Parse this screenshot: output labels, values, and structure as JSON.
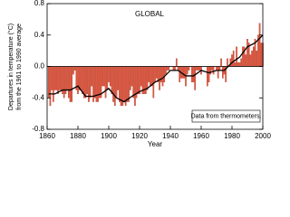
{
  "chart_data": {
    "type": "bar",
    "title": "GLOBAL",
    "ylabel": [
      "Departures in temperature (°C)",
      "from the 1961 to 1990 average"
    ],
    "xlabel": "Year",
    "annotation": "Data from thermometers.",
    "xlim": [
      1860,
      2000
    ],
    "xticks": [
      1860,
      1880,
      1900,
      1920,
      1940,
      1960,
      1980,
      2000
    ],
    "ylim": [
      -0.8,
      0.8
    ],
    "yticks": [
      -0.8,
      -0.4,
      {
        "value": 0,
        "label": "0.0"
      },
      0.4,
      0.8
    ],
    "series": [
      {
        "type": "bar",
        "color": "#e8553c",
        "x": [
          1861,
          1862,
          1863,
          1864,
          1865,
          1866,
          1867,
          1868,
          1869,
          1870,
          1871,
          1872,
          1873,
          1874,
          1875,
          1876,
          1877,
          1878,
          1879,
          1880,
          1881,
          1882,
          1883,
          1884,
          1885,
          1886,
          1887,
          1888,
          1889,
          1890,
          1891,
          1892,
          1893,
          1894,
          1895,
          1896,
          1897,
          1898,
          1899,
          1900,
          1901,
          1902,
          1903,
          1904,
          1905,
          1906,
          1907,
          1908,
          1909,
          1910,
          1911,
          1912,
          1913,
          1914,
          1915,
          1916,
          1917,
          1918,
          1919,
          1920,
          1921,
          1922,
          1923,
          1924,
          1925,
          1926,
          1927,
          1928,
          1929,
          1930,
          1931,
          1932,
          1933,
          1934,
          1935,
          1936,
          1937,
          1938,
          1939,
          1940,
          1941,
          1942,
          1943,
          1944,
          1945,
          1946,
          1947,
          1948,
          1949,
          1950,
          1951,
          1952,
          1953,
          1954,
          1955,
          1956,
          1957,
          1958,
          1959,
          1960,
          1961,
          1962,
          1963,
          1964,
          1965,
          1966,
          1967,
          1968,
          1969,
          1970,
          1971,
          1972,
          1973,
          1974,
          1975,
          1976,
          1977,
          1978,
          1979,
          1980,
          1981,
          1982,
          1983,
          1984,
          1985,
          1986,
          1987,
          1988,
          1989,
          1990,
          1991,
          1992,
          1993,
          1994,
          1995,
          1996,
          1997,
          1998,
          1999,
          2000
        ],
        "values": [
          -0.4,
          -0.5,
          -0.3,
          -0.45,
          -0.3,
          -0.3,
          -0.35,
          -0.3,
          -0.3,
          -0.35,
          -0.4,
          -0.35,
          -0.3,
          -0.4,
          -0.45,
          -0.45,
          -0.1,
          -0.05,
          -0.3,
          -0.35,
          -0.3,
          -0.3,
          -0.35,
          -0.4,
          -0.4,
          -0.35,
          -0.45,
          -0.4,
          -0.25,
          -0.45,
          -0.4,
          -0.45,
          -0.45,
          -0.4,
          -0.4,
          -0.25,
          -0.25,
          -0.4,
          -0.3,
          -0.2,
          -0.25,
          -0.35,
          -0.45,
          -0.5,
          -0.4,
          -0.3,
          -0.45,
          -0.5,
          -0.5,
          -0.45,
          -0.5,
          -0.45,
          -0.45,
          -0.3,
          -0.25,
          -0.4,
          -0.5,
          -0.4,
          -0.35,
          -0.35,
          -0.25,
          -0.35,
          -0.35,
          -0.35,
          -0.3,
          -0.2,
          -0.25,
          -0.25,
          -0.4,
          -0.2,
          -0.15,
          -0.2,
          -0.3,
          -0.2,
          -0.25,
          -0.2,
          -0.1,
          -0.05,
          -0.05,
          0.0,
          0.0,
          -0.05,
          -0.05,
          0.1,
          -0.05,
          -0.2,
          -0.15,
          -0.15,
          -0.15,
          -0.25,
          -0.1,
          -0.05,
          0.0,
          -0.2,
          -0.2,
          -0.3,
          -0.05,
          -0.05,
          -0.05,
          -0.1,
          0.0,
          0.0,
          0.0,
          -0.25,
          -0.2,
          -0.1,
          -0.05,
          -0.1,
          0.0,
          -0.05,
          -0.15,
          -0.05,
          0.1,
          -0.15,
          -0.1,
          -0.2,
          0.1,
          0.0,
          0.1,
          0.15,
          0.2,
          0.05,
          0.25,
          0.05,
          0.05,
          0.1,
          0.25,
          0.25,
          0.15,
          0.35,
          0.3,
          0.15,
          0.2,
          0.25,
          0.35,
          0.2,
          0.4,
          0.55,
          0.3,
          0.3
        ]
      },
      {
        "type": "line",
        "color": "#000000",
        "x": [
          1861,
          1865,
          1870,
          1875,
          1880,
          1885,
          1890,
          1895,
          1900,
          1905,
          1910,
          1915,
          1920,
          1925,
          1930,
          1935,
          1940,
          1945,
          1950,
          1955,
          1960,
          1965,
          1970,
          1975,
          1980,
          1985,
          1990,
          1995,
          2000
        ],
        "values": [
          -0.35,
          -0.35,
          -0.3,
          -0.3,
          -0.25,
          -0.38,
          -0.38,
          -0.35,
          -0.28,
          -0.4,
          -0.45,
          -0.38,
          -0.32,
          -0.28,
          -0.2,
          -0.15,
          -0.05,
          -0.05,
          -0.12,
          -0.12,
          -0.05,
          -0.08,
          -0.05,
          -0.05,
          0.05,
          0.12,
          0.25,
          0.3,
          0.4
        ]
      }
    ]
  }
}
